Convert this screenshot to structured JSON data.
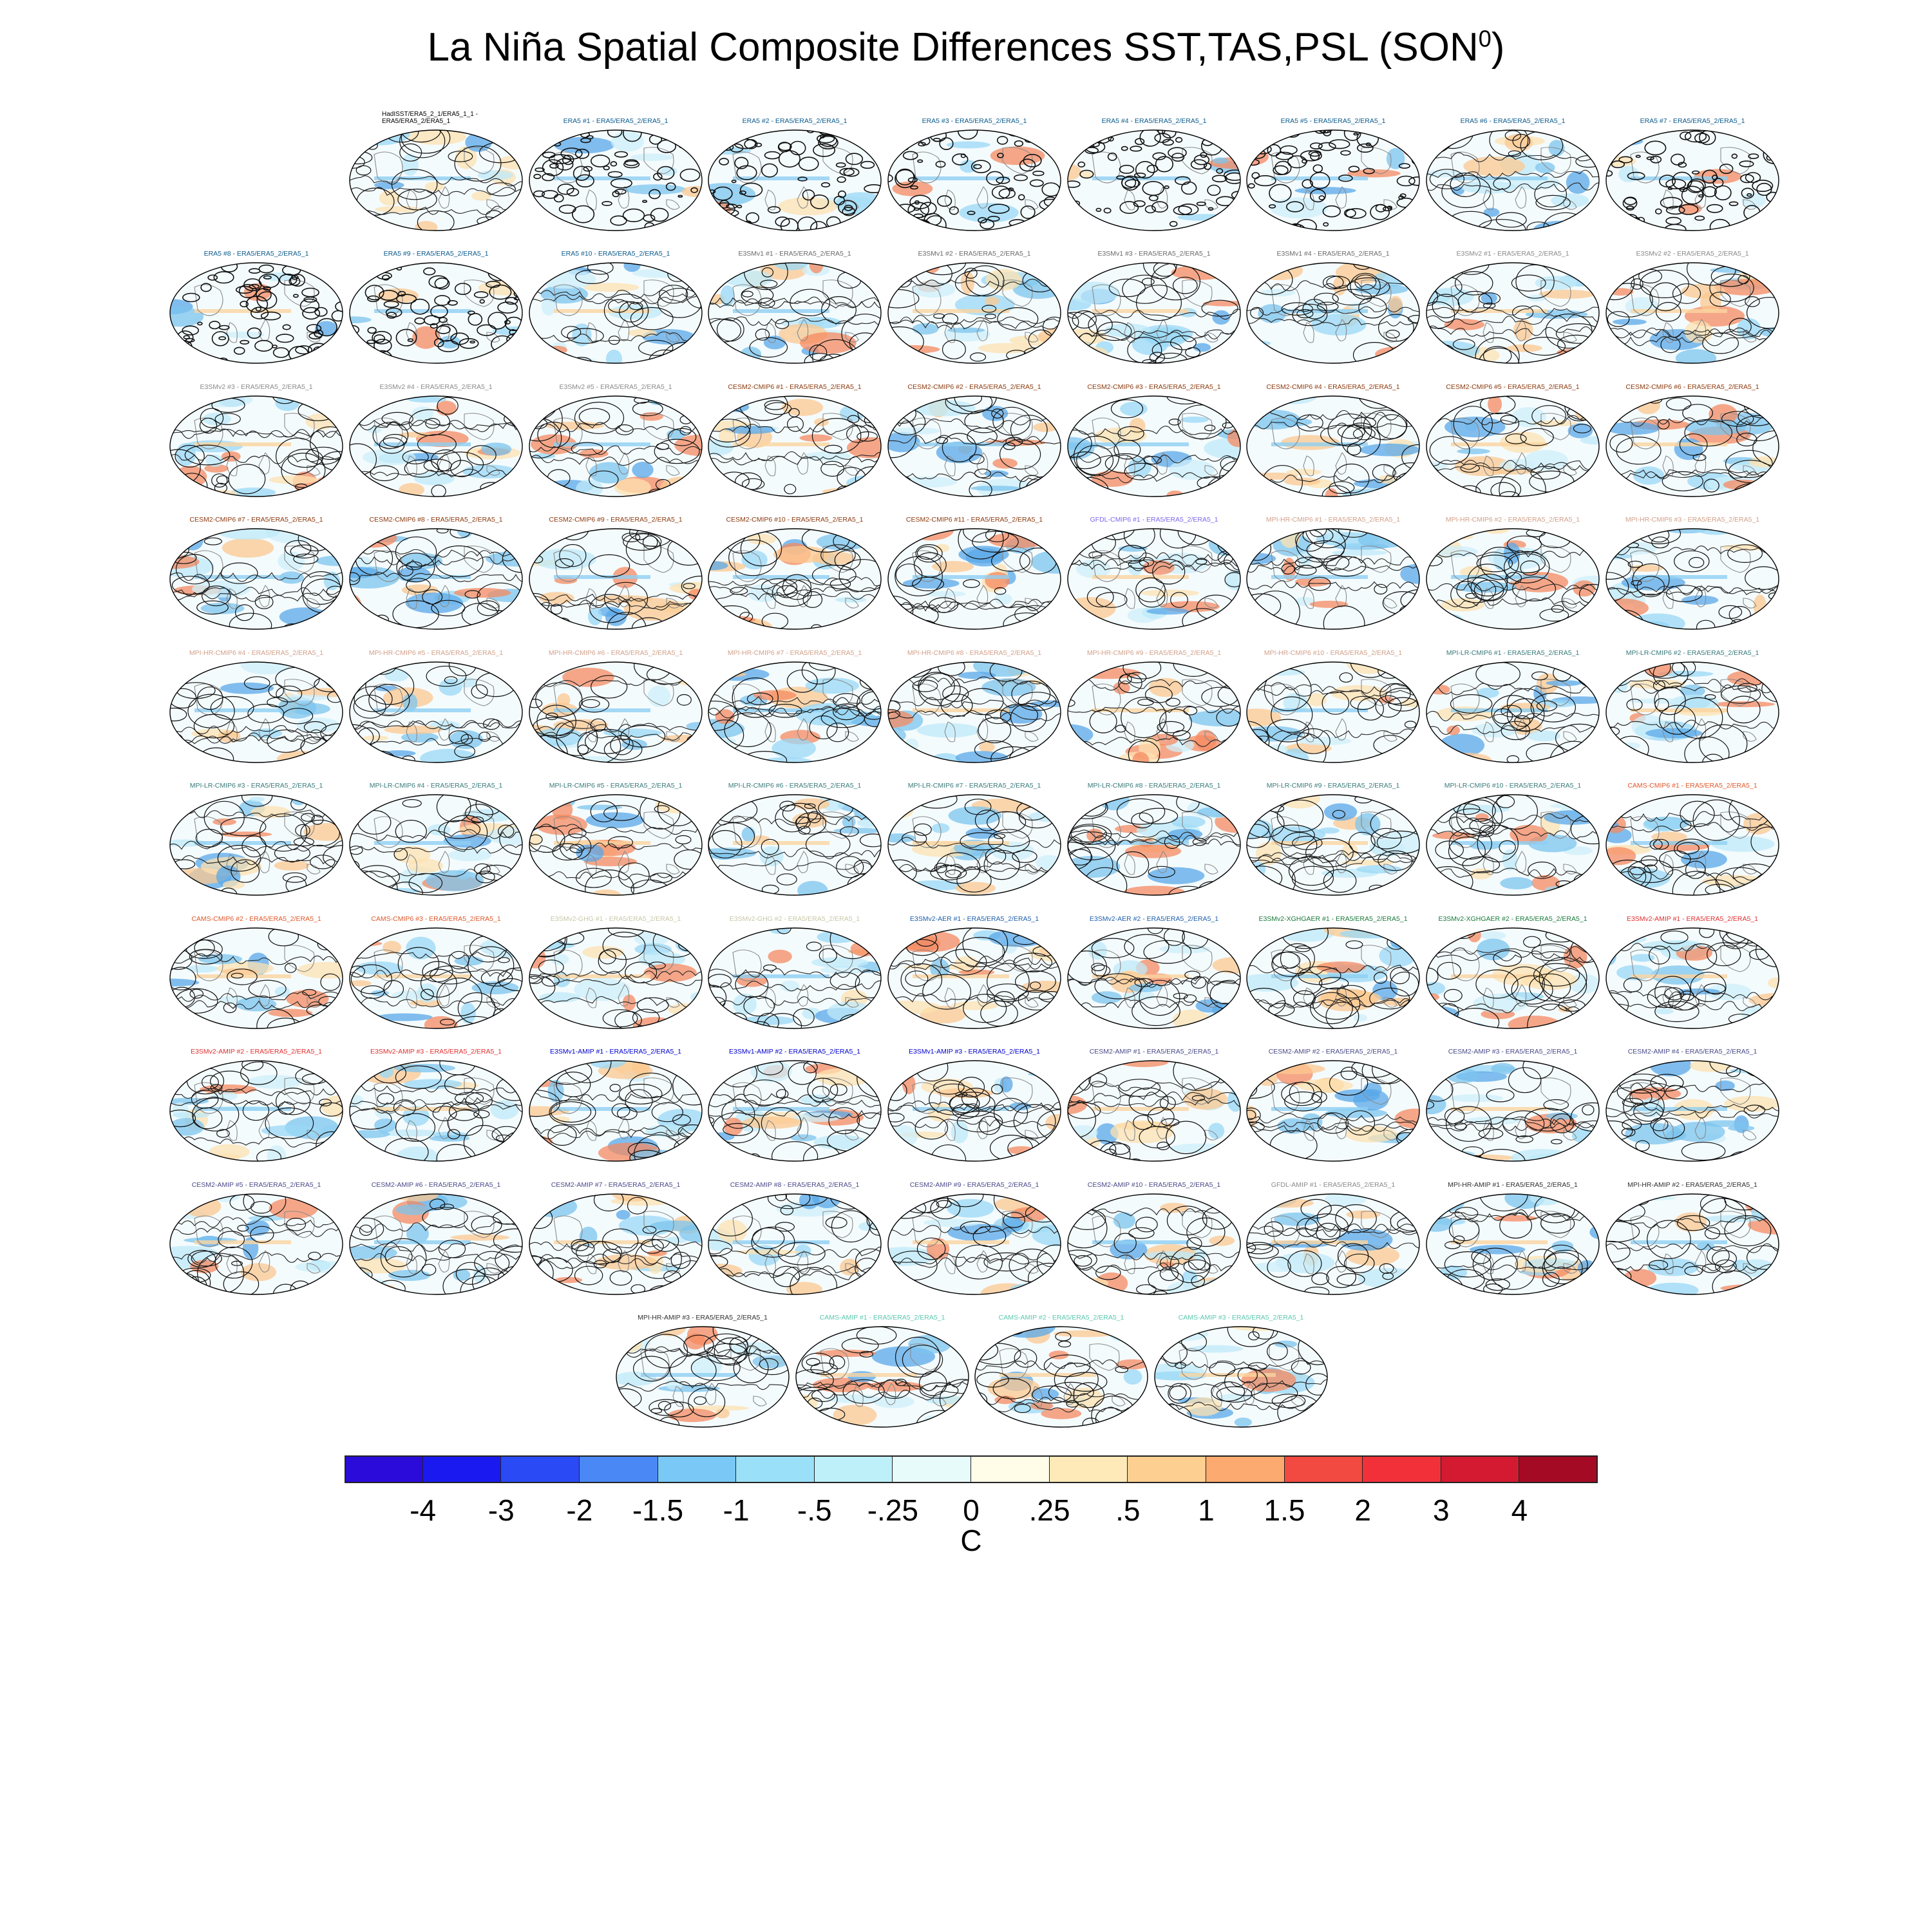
{
  "title": {
    "main": "La Niña Spatial Composite Differences SST,TAS,PSL (SON",
    "sup": "0",
    "close": ")"
  },
  "colors": {
    "obs": "#0a5a8c",
    "e3smv1": "#6a6a6a",
    "e3smv2": "#8a8a8a",
    "cesm2": "#8b3a0e",
    "gfdl": "#7b68ee",
    "mpihr": "#d2a08a",
    "mpilr": "#3a7a7a",
    "cams": "#e0582a",
    "e3smgho": "#c8c8a8",
    "aer": "#1f5faa",
    "xghg": "#1a7a3a",
    "amipe3v2": "#e03030",
    "amipe3v1": "#0000cc",
    "cesmamip": "#4a4a8a",
    "gfdlamip": "#8a8a8a",
    "mpiamip": "#303030",
    "camsamip": "#5ac8b0"
  },
  "panels": [
    {
      "label": "HadISST/ERA5_2_1/ERA5_1_1 - ERA5/ERA5_2/ERA5_1",
      "color": "#000000",
      "dense": false
    },
    {
      "label": "ERA5   #1 - ERA5/ERA5_2/ERA5_1",
      "color": "#0a5a8c",
      "dense": true
    },
    {
      "label": "ERA5   #2 - ERA5/ERA5_2/ERA5_1",
      "color": "#0a5a8c",
      "dense": true
    },
    {
      "label": "ERA5   #3 - ERA5/ERA5_2/ERA5_1",
      "color": "#0a5a8c",
      "dense": true
    },
    {
      "label": "ERA5   #4 - ERA5/ERA5_2/ERA5_1",
      "color": "#0a5a8c",
      "dense": true
    },
    {
      "label": "ERA5   #5 - ERA5/ERA5_2/ERA5_1",
      "color": "#0a5a8c",
      "dense": true
    },
    {
      "label": "ERA5   #6 - ERA5/ERA5_2/ERA5_1",
      "color": "#0a5a8c",
      "dense": false
    },
    {
      "label": "ERA5   #7 - ERA5/ERA5_2/ERA5_1",
      "color": "#0a5a8c",
      "dense": true
    },
    {
      "label": "ERA5   #8 - ERA5/ERA5_2/ERA5_1",
      "color": "#0a5a8c",
      "dense": true
    },
    {
      "label": "ERA5   #9 - ERA5/ERA5_2/ERA5_1",
      "color": "#0a5a8c",
      "dense": true
    },
    {
      "label": "ERA5   #10 - ERA5/ERA5_2/ERA5_1",
      "color": "#0a5a8c",
      "dense": false
    },
    {
      "label": "E3SMv1 #1 - ERA5/ERA5_2/ERA5_1",
      "color": "#6a6a6a",
      "dense": false
    },
    {
      "label": "E3SMv1 #2 - ERA5/ERA5_2/ERA5_1",
      "color": "#6a6a6a",
      "dense": false
    },
    {
      "label": "E3SMv1 #3 - ERA5/ERA5_2/ERA5_1",
      "color": "#6a6a6a",
      "dense": false
    },
    {
      "label": "E3SMv1 #4 - ERA5/ERA5_2/ERA5_1",
      "color": "#6a6a6a",
      "dense": false
    },
    {
      "label": "E3SMv2 #1 - ERA5/ERA5_2/ERA5_1",
      "color": "#8a8a8a",
      "dense": false
    },
    {
      "label": "E3SMv2 #2 - ERA5/ERA5_2/ERA5_1",
      "color": "#8a8a8a",
      "dense": false
    },
    {
      "label": "E3SMv2 #3 - ERA5/ERA5_2/ERA5_1",
      "color": "#8a8a8a",
      "dense": false
    },
    {
      "label": "E3SMv2 #4 - ERA5/ERA5_2/ERA5_1",
      "color": "#8a8a8a",
      "dense": false
    },
    {
      "label": "E3SMv2 #5 - ERA5/ERA5_2/ERA5_1",
      "color": "#8a8a8a",
      "dense": false
    },
    {
      "label": "CESM2-CMIP6 #1 - ERA5/ERA5_2/ERA5_1",
      "color": "#8b3a0e",
      "dense": false
    },
    {
      "label": "CESM2-CMIP6 #2 - ERA5/ERA5_2/ERA5_1",
      "color": "#8b3a0e",
      "dense": false
    },
    {
      "label": "CESM2-CMIP6 #3 - ERA5/ERA5_2/ERA5_1",
      "color": "#8b3a0e",
      "dense": false
    },
    {
      "label": "CESM2-CMIP6 #4 - ERA5/ERA5_2/ERA5_1",
      "color": "#8b3a0e",
      "dense": false
    },
    {
      "label": "CESM2-CMIP6 #5 - ERA5/ERA5_2/ERA5_1",
      "color": "#8b3a0e",
      "dense": false
    },
    {
      "label": "CESM2-CMIP6 #6 - ERA5/ERA5_2/ERA5_1",
      "color": "#8b3a0e",
      "dense": false
    },
    {
      "label": "CESM2-CMIP6 #7 - ERA5/ERA5_2/ERA5_1",
      "color": "#8b3a0e",
      "dense": false
    },
    {
      "label": "CESM2-CMIP6 #8 - ERA5/ERA5_2/ERA5_1",
      "color": "#8b3a0e",
      "dense": false
    },
    {
      "label": "CESM2-CMIP6 #9 - ERA5/ERA5_2/ERA5_1",
      "color": "#8b3a0e",
      "dense": false
    },
    {
      "label": "CESM2-CMIP6 #10 - ERA5/ERA5_2/ERA5_1",
      "color": "#8b3a0e",
      "dense": false
    },
    {
      "label": "CESM2-CMIP6 #11 - ERA5/ERA5_2/ERA5_1",
      "color": "#8b3a0e",
      "dense": false
    },
    {
      "label": "GFDL-CMIP6 #1 - ERA5/ERA5_2/ERA5_1",
      "color": "#7b68ee",
      "dense": false
    },
    {
      "label": "MPI-HR-CMIP6 #1 - ERA5/ERA5_2/ERA5_1",
      "color": "#d2a08a",
      "dense": false
    },
    {
      "label": "MPI-HR-CMIP6 #2 - ERA5/ERA5_2/ERA5_1",
      "color": "#d2a08a",
      "dense": false
    },
    {
      "label": "MPI-HR-CMIP6 #3 - ERA5/ERA5_2/ERA5_1",
      "color": "#d2a08a",
      "dense": false
    },
    {
      "label": "MPI-HR-CMIP6 #4 - ERA5/ERA5_2/ERA5_1",
      "color": "#d2a08a",
      "dense": false
    },
    {
      "label": "MPI-HR-CMIP6 #5 - ERA5/ERA5_2/ERA5_1",
      "color": "#d2a08a",
      "dense": false
    },
    {
      "label": "MPI-HR-CMIP6 #6 - ERA5/ERA5_2/ERA5_1",
      "color": "#d2a08a",
      "dense": false
    },
    {
      "label": "MPI-HR-CMIP6 #7 - ERA5/ERA5_2/ERA5_1",
      "color": "#d2a08a",
      "dense": false
    },
    {
      "label": "MPI-HR-CMIP6 #8 - ERA5/ERA5_2/ERA5_1",
      "color": "#d2a08a",
      "dense": false
    },
    {
      "label": "MPI-HR-CMIP6 #9 - ERA5/ERA5_2/ERA5_1",
      "color": "#d2a08a",
      "dense": false
    },
    {
      "label": "MPI-HR-CMIP6 #10 - ERA5/ERA5_2/ERA5_1",
      "color": "#d2a08a",
      "dense": false
    },
    {
      "label": "MPI-LR-CMIP6 #1 - ERA5/ERA5_2/ERA5_1",
      "color": "#3a7a7a",
      "dense": false
    },
    {
      "label": "MPI-LR-CMIP6 #2 - ERA5/ERA5_2/ERA5_1",
      "color": "#3a7a7a",
      "dense": false
    },
    {
      "label": "MPI-LR-CMIP6 #3 - ERA5/ERA5_2/ERA5_1",
      "color": "#3a7a7a",
      "dense": false
    },
    {
      "label": "MPI-LR-CMIP6 #4 - ERA5/ERA5_2/ERA5_1",
      "color": "#3a7a7a",
      "dense": false
    },
    {
      "label": "MPI-LR-CMIP6 #5 - ERA5/ERA5_2/ERA5_1",
      "color": "#3a7a7a",
      "dense": false
    },
    {
      "label": "MPI-LR-CMIP6 #6 - ERA5/ERA5_2/ERA5_1",
      "color": "#3a7a7a",
      "dense": false
    },
    {
      "label": "MPI-LR-CMIP6 #7 - ERA5/ERA5_2/ERA5_1",
      "color": "#3a7a7a",
      "dense": false
    },
    {
      "label": "MPI-LR-CMIP6 #8 - ERA5/ERA5_2/ERA5_1",
      "color": "#3a7a7a",
      "dense": false
    },
    {
      "label": "MPI-LR-CMIP6 #9 - ERA5/ERA5_2/ERA5_1",
      "color": "#3a7a7a",
      "dense": false
    },
    {
      "label": "MPI-LR-CMIP6 #10 - ERA5/ERA5_2/ERA5_1",
      "color": "#3a7a7a",
      "dense": false
    },
    {
      "label": "CAMS-CMIP6 #1 - ERA5/ERA5_2/ERA5_1",
      "color": "#e0582a",
      "dense": false
    },
    {
      "label": "CAMS-CMIP6 #2 - ERA5/ERA5_2/ERA5_1",
      "color": "#e0582a",
      "dense": false
    },
    {
      "label": "CAMS-CMIP6 #3 - ERA5/ERA5_2/ERA5_1",
      "color": "#e0582a",
      "dense": false
    },
    {
      "label": "E3SMv2-GHG #1 - ERA5/ERA5_2/ERA5_1",
      "color": "#c8c8a8",
      "dense": false
    },
    {
      "label": "E3SMv2-GHG #2 - ERA5/ERA5_2/ERA5_1",
      "color": "#c8c8a8",
      "dense": false
    },
    {
      "label": "E3SMv2-AER #1 - ERA5/ERA5_2/ERA5_1",
      "color": "#1f5faa",
      "dense": false
    },
    {
      "label": "E3SMv2-AER #2 - ERA5/ERA5_2/ERA5_1",
      "color": "#1f5faa",
      "dense": false
    },
    {
      "label": "E3SMv2-XGHGAER #1 - ERA5/ERA5_2/ERA5_1",
      "color": "#1a7a3a",
      "dense": false
    },
    {
      "label": "E3SMv2-XGHGAER #2 - ERA5/ERA5_2/ERA5_1",
      "color": "#1a7a3a",
      "dense": false
    },
    {
      "label": "E3SMv2-AMIP #1 - ERA5/ERA5_2/ERA5_1",
      "color": "#e03030",
      "dense": false
    },
    {
      "label": "E3SMv2-AMIP #2 - ERA5/ERA5_2/ERA5_1",
      "color": "#e03030",
      "dense": false
    },
    {
      "label": "E3SMv2-AMIP #3 - ERA5/ERA5_2/ERA5_1",
      "color": "#e03030",
      "dense": false
    },
    {
      "label": "E3SMv1-AMIP #1 - ERA5/ERA5_2/ERA5_1",
      "color": "#0000cc",
      "dense": false
    },
    {
      "label": "E3SMv1-AMIP #2 - ERA5/ERA5_2/ERA5_1",
      "color": "#0000cc",
      "dense": false
    },
    {
      "label": "E3SMv1-AMIP #3 - ERA5/ERA5_2/ERA5_1",
      "color": "#0000cc",
      "dense": false
    },
    {
      "label": "CESM2-AMIP #1 - ERA5/ERA5_2/ERA5_1",
      "color": "#4a4a8a",
      "dense": false
    },
    {
      "label": "CESM2-AMIP #2 - ERA5/ERA5_2/ERA5_1",
      "color": "#4a4a8a",
      "dense": false
    },
    {
      "label": "CESM2-AMIP #3 - ERA5/ERA5_2/ERA5_1",
      "color": "#4a4a8a",
      "dense": false
    },
    {
      "label": "CESM2-AMIP #4 - ERA5/ERA5_2/ERA5_1",
      "color": "#4a4a8a",
      "dense": false
    },
    {
      "label": "CESM2-AMIP #5 - ERA5/ERA5_2/ERA5_1",
      "color": "#4a4a8a",
      "dense": false
    },
    {
      "label": "CESM2-AMIP #6 - ERA5/ERA5_2/ERA5_1",
      "color": "#4a4a8a",
      "dense": false
    },
    {
      "label": "CESM2-AMIP #7 - ERA5/ERA5_2/ERA5_1",
      "color": "#4a4a8a",
      "dense": false
    },
    {
      "label": "CESM2-AMIP #8 - ERA5/ERA5_2/ERA5_1",
      "color": "#4a4a8a",
      "dense": false
    },
    {
      "label": "CESM2-AMIP #9 - ERA5/ERA5_2/ERA5_1",
      "color": "#4a4a8a",
      "dense": false
    },
    {
      "label": "CESM2-AMIP #10 - ERA5/ERA5_2/ERA5_1",
      "color": "#4a4a8a",
      "dense": false
    },
    {
      "label": "GFDL-AMIP #1 - ERA5/ERA5_2/ERA5_1",
      "color": "#8a8a8a",
      "dense": false
    },
    {
      "label": "MPI-HR-AMIP #1 - ERA5/ERA5_2/ERA5_1",
      "color": "#303030",
      "dense": false
    },
    {
      "label": "MPI-HR-AMIP #2 - ERA5/ERA5_2/ERA5_1",
      "color": "#303030",
      "dense": false
    },
    {
      "label": "MPI-HR-AMIP #3 - ERA5/ERA5_2/ERA5_1",
      "color": "#303030",
      "dense": false
    },
    {
      "label": "CAMS-AMIP #1 - ERA5/ERA5_2/ERA5_1",
      "color": "#5ac8b0",
      "dense": false
    },
    {
      "label": "CAMS-AMIP #2 - ERA5/ERA5_2/ERA5_1",
      "color": "#5ac8b0",
      "dense": false
    },
    {
      "label": "CAMS-AMIP #3 - ERA5/ERA5_2/ERA5_1",
      "color": "#5ac8b0",
      "dense": false
    }
  ],
  "colorbar": {
    "colors": [
      "#2a0bd9",
      "#1a1af0",
      "#2a4af5",
      "#4a88f5",
      "#7ac8f5",
      "#9ae0f8",
      "#bdf0f8",
      "#e8fbfb",
      "#fffde8",
      "#feeab8",
      "#fdcf90",
      "#fcaa70",
      "#f24a40",
      "#f2303a",
      "#d41a30",
      "#a50a25"
    ],
    "ticks": [
      "-4",
      "-3",
      "-2",
      "-1.5",
      "-1",
      "-.5",
      "-.25",
      "0",
      ".25",
      ".5",
      "1",
      "1.5",
      "2",
      "3",
      "4"
    ],
    "units": "C"
  }
}
